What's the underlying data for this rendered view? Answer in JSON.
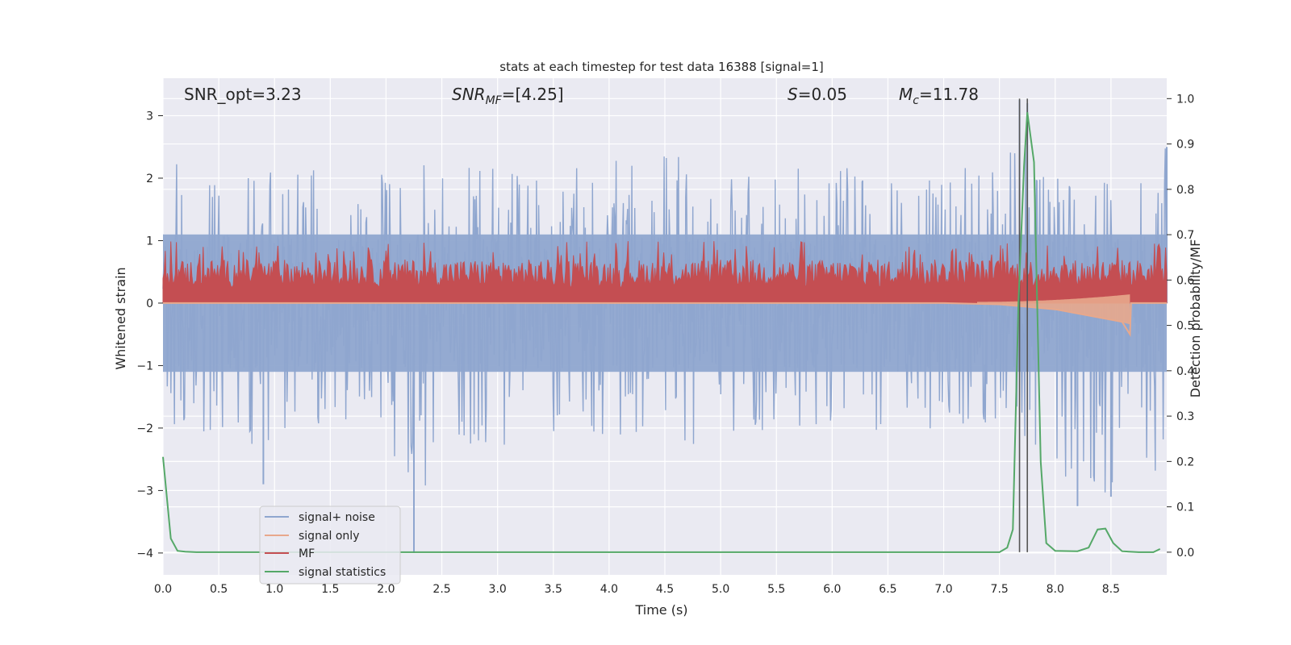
{
  "chart_data": {
    "type": "line",
    "title": "stats at each timestep for test data 16388 [signal=1]",
    "xlabel": "Time (s)",
    "ylabel_left": "Whitened strain",
    "ylabel_right": "Detection probability/MF",
    "xlim": [
      0,
      9.0
    ],
    "ylim_left": [
      -4.35,
      3.6
    ],
    "ylim_right": [
      -0.05,
      1.045
    ],
    "x_ticks": [
      "0.0",
      "0.5",
      "1.0",
      "1.5",
      "2.0",
      "2.5",
      "3.0",
      "3.5",
      "4.0",
      "4.5",
      "5.0",
      "5.5",
      "6.0",
      "6.5",
      "7.0",
      "7.5",
      "8.0",
      "8.5"
    ],
    "x_tick_values": [
      0,
      0.5,
      1,
      1.5,
      2,
      2.5,
      3,
      3.5,
      4,
      4.5,
      5,
      5.5,
      6,
      6.5,
      7,
      7.5,
      8,
      8.5
    ],
    "y_left_ticks": [
      "−4",
      "−3",
      "−2",
      "−1",
      "0",
      "1",
      "2",
      "3"
    ],
    "y_left_tick_values": [
      -4,
      -3,
      -2,
      -1,
      0,
      1,
      2,
      3
    ],
    "y_right_ticks": [
      "0.0",
      "0.1",
      "0.2",
      "0.3",
      "0.4",
      "0.5",
      "0.6",
      "0.7",
      "0.8",
      "0.9",
      "1.0"
    ],
    "y_right_tick_values": [
      0,
      0.1,
      0.2,
      0.3,
      0.4,
      0.5,
      0.6,
      0.7,
      0.8,
      0.9,
      1.0
    ],
    "grid": true,
    "legend_position": "lower-left",
    "colors": {
      "signal_noise": "#8fa6cf",
      "signal_only": "#e8a88c",
      "mf": "#c44e52",
      "signal_statistics": "#55a868",
      "vlines": "#555555",
      "axes_bg": "#eaeaf2"
    },
    "annotations": {
      "snr_opt": "SNR_opt=3.23",
      "snr_mf_base": "SNR",
      "snr_mf_sub": "MF",
      "snr_mf_rest": "=[4.25]",
      "s_sym": "S",
      "s_rest": "=0.05",
      "mc_sym": "M",
      "mc_sub": "c",
      "mc_rest": "=11.78"
    },
    "series": [
      {
        "name": "signal+ noise",
        "axis": "left",
        "style": "noise band, roughly ±1.1 with spikes",
        "envelope_upper": [
          [
            0,
            2.3
          ],
          [
            0.5,
            2.0
          ],
          [
            1.0,
            2.1
          ],
          [
            1.5,
            2.4
          ],
          [
            2.0,
            2.2
          ],
          [
            2.5,
            2.3
          ],
          [
            3.0,
            2.2
          ],
          [
            3.5,
            2.1
          ],
          [
            4.0,
            2.3
          ],
          [
            4.5,
            2.4
          ],
          [
            5.0,
            2.2
          ],
          [
            5.5,
            2.3
          ],
          [
            6.0,
            2.2
          ],
          [
            6.5,
            2.3
          ],
          [
            7.0,
            2.2
          ],
          [
            7.5,
            2.1
          ],
          [
            7.7,
            3.25
          ],
          [
            8.0,
            2.1
          ],
          [
            8.5,
            2.0
          ],
          [
            9.0,
            2.5
          ]
        ],
        "envelope_lower": [
          [
            0,
            -2.0
          ],
          [
            0.5,
            -2.2
          ],
          [
            1.0,
            -2.4
          ],
          [
            1.5,
            -2.2
          ],
          [
            2.0,
            -2.0
          ],
          [
            2.25,
            -4.0
          ],
          [
            2.5,
            -2.3
          ],
          [
            3.0,
            -2.3
          ],
          [
            3.5,
            -2.2
          ],
          [
            4.0,
            -2.1
          ],
          [
            4.5,
            -2.4
          ],
          [
            5.0,
            -2.2
          ],
          [
            5.5,
            -2.0
          ],
          [
            6.0,
            -2.1
          ],
          [
            6.5,
            -2.2
          ],
          [
            7.0,
            -2.1
          ],
          [
            7.5,
            -2.0
          ],
          [
            8.2,
            -3.25
          ],
          [
            8.5,
            -3.1
          ],
          [
            9.0,
            -2.6
          ]
        ]
      },
      {
        "name": "signal only",
        "axis": "left",
        "points": [
          [
            0,
            0
          ],
          [
            6.0,
            0
          ],
          [
            7.0,
            0
          ],
          [
            7.5,
            -0.02
          ],
          [
            8.0,
            -0.1
          ],
          [
            8.3,
            -0.2
          ],
          [
            8.6,
            -0.3
          ],
          [
            8.67,
            -0.5
          ],
          [
            8.68,
            0
          ],
          [
            9.0,
            0
          ]
        ]
      },
      {
        "name": "MF",
        "axis": "left",
        "style": "positive band, roughly 0 to 0.7 with spikes to 1.0",
        "band": [
          0,
          0.7
        ],
        "peak": 1.0
      },
      {
        "name": "signal statistics",
        "axis": "right",
        "points": [
          [
            0,
            0.21
          ],
          [
            0.07,
            0.03
          ],
          [
            0.13,
            0.003
          ],
          [
            0.2,
            0.001
          ],
          [
            0.3,
            0
          ],
          [
            1.0,
            0
          ],
          [
            3.0,
            0
          ],
          [
            5.0,
            0
          ],
          [
            7.0,
            0
          ],
          [
            7.5,
            0
          ],
          [
            7.57,
            0.01
          ],
          [
            7.62,
            0.05
          ],
          [
            7.67,
            0.55
          ],
          [
            7.72,
            0.85
          ],
          [
            7.75,
            0.97
          ],
          [
            7.81,
            0.86
          ],
          [
            7.87,
            0.2
          ],
          [
            7.92,
            0.02
          ],
          [
            8.0,
            0.003
          ],
          [
            8.2,
            0.002
          ],
          [
            8.3,
            0.01
          ],
          [
            8.38,
            0.05
          ],
          [
            8.45,
            0.052
          ],
          [
            8.52,
            0.02
          ],
          [
            8.6,
            0.002
          ],
          [
            8.75,
            0
          ],
          [
            8.88,
            0
          ],
          [
            8.94,
            0.007
          ]
        ]
      }
    ],
    "vlines_x": [
      7.68,
      7.75
    ]
  },
  "legend": [
    {
      "label": "signal+ noise",
      "color": "#8fa6cf"
    },
    {
      "label": "signal only",
      "color": "#e8a88c"
    },
    {
      "label": "MF",
      "color": "#c44e52"
    },
    {
      "label": "signal statistics",
      "color": "#55a868"
    }
  ]
}
